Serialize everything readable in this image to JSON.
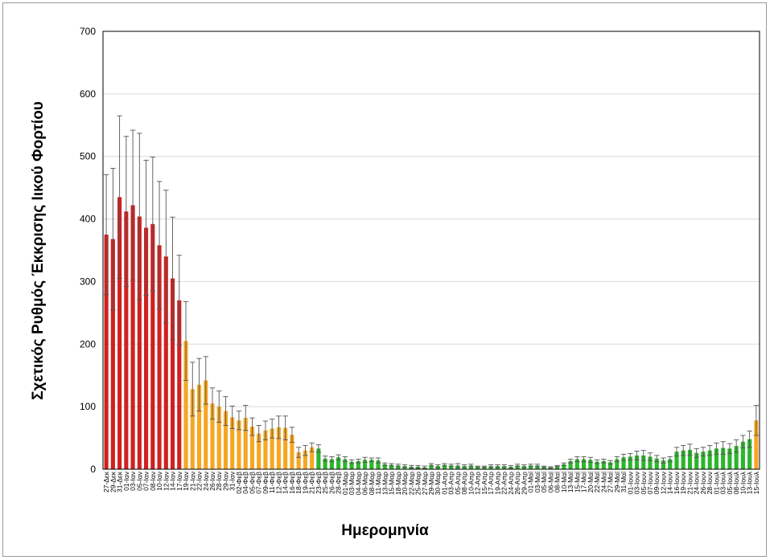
{
  "chart_data": {
    "type": "bar",
    "title": "",
    "xlabel": "Ημερομηνία",
    "ylabel": "Σχετικός Ρυθμός Έκκρισης Ιικού Φορτίου",
    "ylim": [
      0,
      700
    ],
    "yticks": [
      0,
      100,
      200,
      300,
      400,
      500,
      600,
      700
    ],
    "grid": true,
    "error_bars": true,
    "colors": {
      "red": "#d02020",
      "orange": "#f5a623",
      "green": "#2cb52c",
      "error": "#555555",
      "grid": "#d9d9d9"
    },
    "categories": [
      "27-Δεκ",
      "29-Δεκ",
      "31-Δεκ",
      "01-Ιαν",
      "03-Ιαν",
      "05-Ιαν",
      "07-Ιαν",
      "08-Ιαν",
      "10-Ιαν",
      "12-Ιαν",
      "14-Ιαν",
      "17-Ιαν",
      "19-Ιαν",
      "21-Ιαν",
      "22-Ιαν",
      "24-Ιαν",
      "26-Ιαν",
      "28-Ιαν",
      "29-Ιαν",
      "31-Ιαν",
      "02-Φεβ",
      "04-Φεβ",
      "05-Φεβ",
      "07-Φεβ",
      "09-Φεβ",
      "11-Φεβ",
      "12-Φεβ",
      "14-Φεβ",
      "16-Φεβ",
      "18-Φεβ",
      "19-Φεβ",
      "21-Φεβ",
      "23-Φεβ",
      "25-Φεβ",
      "26-Φεβ",
      "28-Φεβ",
      "01-Μαρ",
      "03-Μαρ",
      "04-Μαρ",
      "06-Μαρ",
      "08-Μαρ",
      "11-Μαρ",
      "13-Μαρ",
      "15-Μαρ",
      "18-Μαρ",
      "20-Μαρ",
      "22-Μαρ",
      "25-Μαρ",
      "27-Μαρ",
      "29-Μαρ",
      "30-Μαρ",
      "01-Απρ",
      "03-Απρ",
      "05-Απρ",
      "08-Απρ",
      "10-Απρ",
      "12-Απρ",
      "15-Απρ",
      "17-Απρ",
      "19-Απρ",
      "22-Απρ",
      "24-Απρ",
      "26-Απρ",
      "29-Απρ",
      "01-Μαϊ",
      "03-Μαϊ",
      "05-Μαϊ",
      "06-Μαϊ",
      "08-Μαϊ",
      "10-Μαϊ",
      "13-Μαϊ",
      "15-Μαϊ",
      "17-Μαϊ",
      "20-Μαϊ",
      "22-Μαϊ",
      "24-Μαϊ",
      "27-Μαϊ",
      "29-Μαϊ",
      "31-Μαϊ",
      "01-Ιουν",
      "03-Ιουν",
      "05-Ιουν",
      "07-Ιουν",
      "09-Ιουν",
      "12-Ιουν",
      "14-Ιουν",
      "16-Ιουν",
      "19-Ιουν",
      "21-Ιουν",
      "24-Ιουν",
      "26-Ιουν",
      "28-Ιουν",
      "01-Ιουλ",
      "03-Ιουλ",
      "05-Ιουλ",
      "08-Ιουλ",
      "10-Ιουλ",
      "13-Ιουλ",
      "15-Ιουλ"
    ],
    "values": [
      375,
      368,
      435,
      412,
      422,
      404,
      386,
      392,
      358,
      340,
      305,
      270,
      205,
      128,
      135,
      142,
      105,
      100,
      93,
      83,
      78,
      82,
      68,
      57,
      62,
      65,
      67,
      66,
      55,
      27,
      30,
      35,
      33,
      17,
      16,
      19,
      16,
      12,
      13,
      15,
      15,
      14,
      8,
      7,
      6,
      5,
      4,
      4,
      3,
      7,
      5,
      7,
      6,
      6,
      5,
      6,
      4,
      4,
      5,
      5,
      5,
      4,
      6,
      5,
      6,
      6,
      4,
      3,
      5,
      8,
      13,
      16,
      16,
      15,
      12,
      13,
      11,
      16,
      19,
      20,
      22,
      22,
      20,
      17,
      14,
      16,
      28,
      30,
      31,
      26,
      28,
      30,
      33,
      34,
      33,
      37,
      44,
      48,
      78
    ],
    "errors": [
      96,
      113,
      130,
      120,
      120,
      133,
      108,
      107,
      102,
      106,
      98,
      72,
      63,
      43,
      42,
      38,
      25,
      25,
      23,
      18,
      15,
      20,
      14,
      13,
      15,
      15,
      18,
      19,
      12,
      8,
      8,
      7,
      6,
      4,
      4,
      4,
      4,
      3,
      3,
      4,
      3,
      4,
      2,
      2,
      2,
      2,
      2,
      2,
      2,
      2,
      2,
      2,
      2,
      3,
      2,
      2,
      1,
      1,
      2,
      2,
      2,
      2,
      2,
      2,
      2,
      2,
      1,
      1,
      1,
      2,
      3,
      4,
      4,
      4,
      3,
      3,
      3,
      4,
      5,
      5,
      7,
      8,
      6,
      5,
      4,
      4,
      7,
      8,
      9,
      7,
      7,
      8,
      9,
      10,
      8,
      10,
      10,
      13,
      24
    ],
    "bar_color_groups": [
      {
        "color": "red",
        "count": 12
      },
      {
        "color": "orange",
        "count": 20
      },
      {
        "color": "green",
        "count": 66
      },
      {
        "color": "orange",
        "count": 1
      }
    ]
  }
}
